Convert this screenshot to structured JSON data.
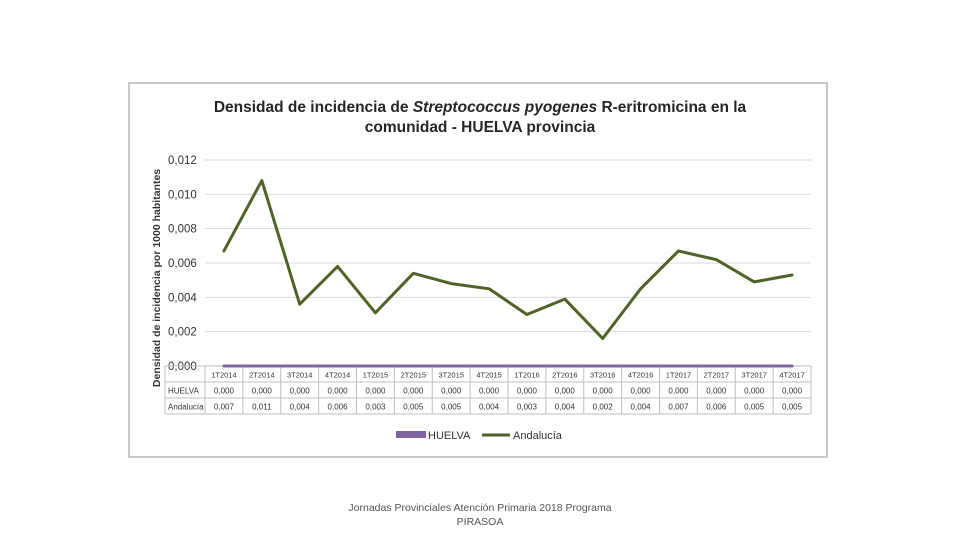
{
  "chart_data": {
    "type": "line",
    "title_part1": "Densidad de incidencia de ",
    "title_italic": "Streptococcus pyogenes",
    "title_part2": " R-eritromicina en la",
    "title_line2": "comunidad - HUELVA provincia",
    "ylabel": "Densidad de incidencia por 1000 habitantes",
    "ylim": [
      0,
      0.012
    ],
    "yticks": [
      "0,012",
      "0,010",
      "0,008",
      "0,006",
      "0,004",
      "0,002",
      "0,000"
    ],
    "ytick_values": [
      0.012,
      0.01,
      0.008,
      0.006,
      0.004,
      0.002,
      0.0
    ],
    "categories": [
      "1T2014",
      "2T2014",
      "3T2014",
      "4T2014",
      "1T2015",
      "2T2015",
      "3T2015",
      "4T2015",
      "1T2016",
      "2T2016",
      "3T2016",
      "4T2016",
      "1T2017",
      "2T2017",
      "3T2017",
      "4T2017"
    ],
    "series": [
      {
        "name": "HUELVA",
        "color": "#8064a2",
        "values": [
          0,
          0,
          0,
          0,
          0,
          0,
          0,
          0,
          0,
          0,
          0,
          0,
          0,
          0,
          0,
          0
        ],
        "labels": [
          "0,000",
          "0,000",
          "0,000",
          "0,000",
          "0,000",
          "0,000",
          "0,000",
          "0,000",
          "0,000",
          "0,000",
          "0,000",
          "0,000",
          "0,000",
          "0,000",
          "0,000",
          "0,000"
        ]
      },
      {
        "name": "Andalucía",
        "color": "#4f6228",
        "values": [
          0.0067,
          0.0108,
          0.0036,
          0.0058,
          0.0031,
          0.0054,
          0.0048,
          0.0045,
          0.003,
          0.0039,
          0.0016,
          0.0045,
          0.0067,
          0.0062,
          0.0049,
          0.0053
        ],
        "labels": [
          "0,007",
          "0,011",
          "0,004",
          "0,006",
          "0,003",
          "0,005",
          "0,005",
          "0,004",
          "0,003",
          "0,004",
          "0,002",
          "0,004",
          "0,007",
          "0,006",
          "0,005",
          "0,005"
        ]
      }
    ],
    "grid": true,
    "legend": "bottom"
  },
  "footer": {
    "line1": "Jornadas Provinciales Atención Primaria 2018 Programa",
    "line2": "PIRASOA"
  }
}
